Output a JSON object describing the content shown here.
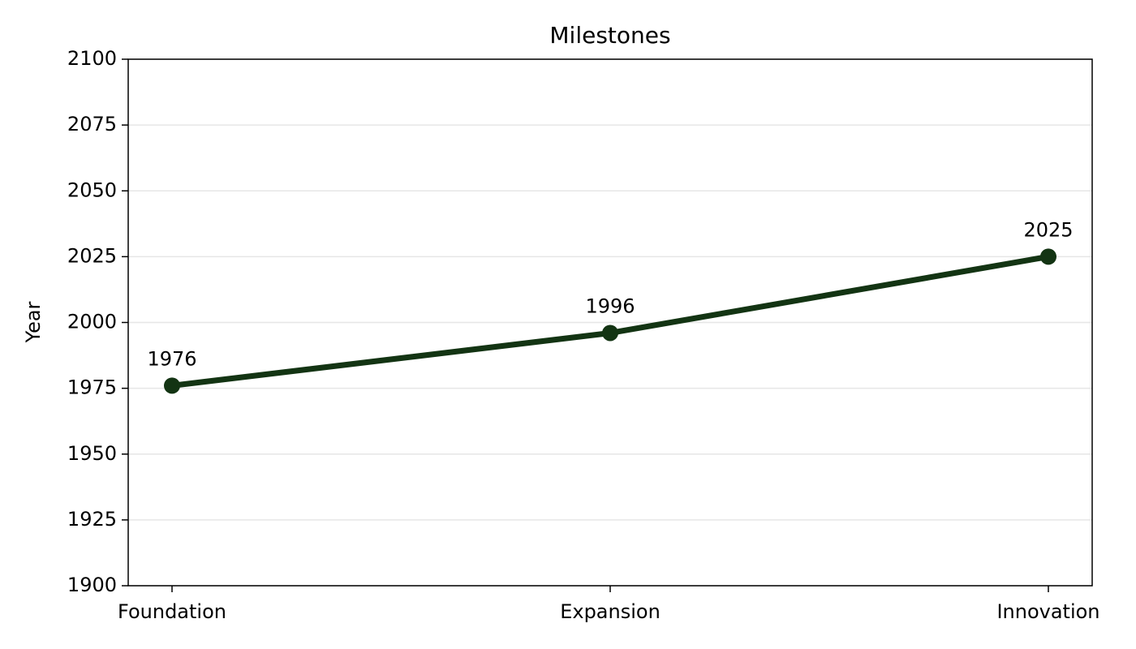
{
  "chart_data": {
    "type": "line",
    "title": "Milestones",
    "y_label": "Year",
    "categories": [
      "Foundation",
      "Expansion",
      "Innovation"
    ],
    "values": [
      1976,
      1996,
      2025
    ],
    "color": "#133413",
    "ylim": [
      1900,
      2100
    ],
    "yticks": [
      1900,
      1925,
      1950,
      1975,
      2000,
      2025,
      2050,
      2075,
      2100
    ],
    "grid": true
  }
}
